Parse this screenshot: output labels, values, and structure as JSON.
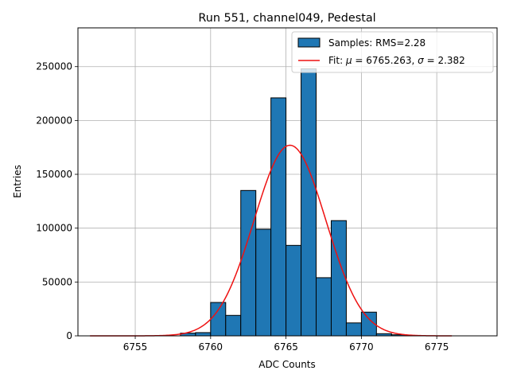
{
  "chart_data": {
    "type": "bar",
    "title": "Run 551, channel049, Pedestal",
    "xlabel": "ADC Counts",
    "ylabel": "Entries",
    "xlim": [
      6751.2,
      6779
    ],
    "ylim": [
      0,
      286000
    ],
    "xticks": [
      6755,
      6760,
      6765,
      6770,
      6775
    ],
    "yticks": [
      0,
      50000,
      100000,
      150000,
      200000,
      250000
    ],
    "grid": true,
    "legend_position": "top-right",
    "bin_width": 1,
    "bins": [
      {
        "left": 6758,
        "value": 2500
      },
      {
        "left": 6759,
        "value": 3000
      },
      {
        "left": 6760,
        "value": 31000
      },
      {
        "left": 6761,
        "value": 19000
      },
      {
        "left": 6762,
        "value": 135000
      },
      {
        "left": 6763,
        "value": 99000
      },
      {
        "left": 6764,
        "value": 221000
      },
      {
        "left": 6765,
        "value": 84000
      },
      {
        "left": 6766,
        "value": 248000
      },
      {
        "left": 6767,
        "value": 54000
      },
      {
        "left": 6768,
        "value": 107000
      },
      {
        "left": 6769,
        "value": 12000
      },
      {
        "left": 6770,
        "value": 22000
      },
      {
        "left": 6771,
        "value": 2000
      },
      {
        "left": 6772,
        "value": 1000
      }
    ],
    "fit": {
      "mu": 6765.263,
      "sigma": 2.382,
      "amplitude": 177000,
      "x_range": [
        6752,
        6776
      ]
    },
    "series": [
      {
        "name": "Samples: RMS=2.28",
        "color": "#1f77b4",
        "kind": "histogram"
      },
      {
        "name_prefix": "Fit: ",
        "mu_symbol": "μ",
        "mu_text": " = 6765.263, ",
        "sigma_symbol": "σ",
        "sigma_text": " = 2.382",
        "color": "#ee1111",
        "kind": "line"
      }
    ]
  }
}
